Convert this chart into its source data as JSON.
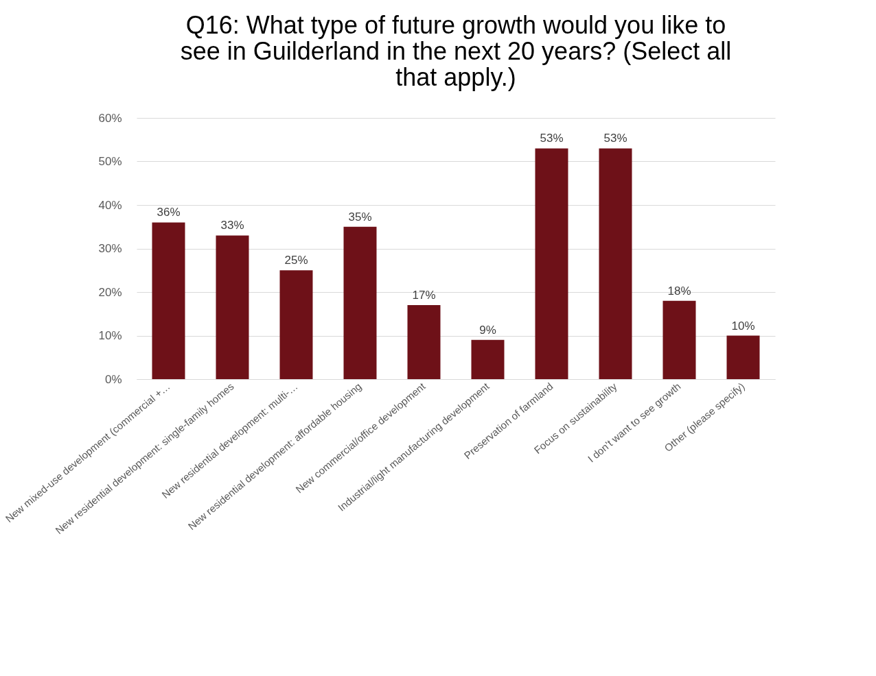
{
  "chart_data": {
    "type": "bar",
    "title": "Q16: What type of future growth would you like to see in Guilderland in the next 20 years? (Select all that apply.)",
    "categories": [
      "New mixed-use development (commercial +…",
      "New residential development: single-family homes",
      "New residential development: multi-…",
      "New residential development: affordable housing",
      "New commercial/office development",
      "Industrial/light manufacturing development",
      "Preservation of farmland",
      "Focus on sustainability",
      "I don’t want to see growth",
      "Other (please specify)"
    ],
    "values": [
      36,
      33,
      25,
      35,
      17,
      9,
      53,
      53,
      18,
      10
    ],
    "value_labels": [
      "36%",
      "33%",
      "25%",
      "35%",
      "17%",
      "9%",
      "53%",
      "53%",
      "18%",
      "10%"
    ],
    "color": "#6e1118",
    "ylim": [
      0,
      60
    ],
    "yticks": [
      {
        "value": 0,
        "label": "0%"
      },
      {
        "value": 10,
        "label": "10%"
      },
      {
        "value": 20,
        "label": "20%"
      },
      {
        "value": 30,
        "label": "30%"
      },
      {
        "value": 40,
        "label": "40%"
      },
      {
        "value": 50,
        "label": "50%"
      },
      {
        "value": 60,
        "label": "60%"
      }
    ],
    "grid": "y"
  }
}
